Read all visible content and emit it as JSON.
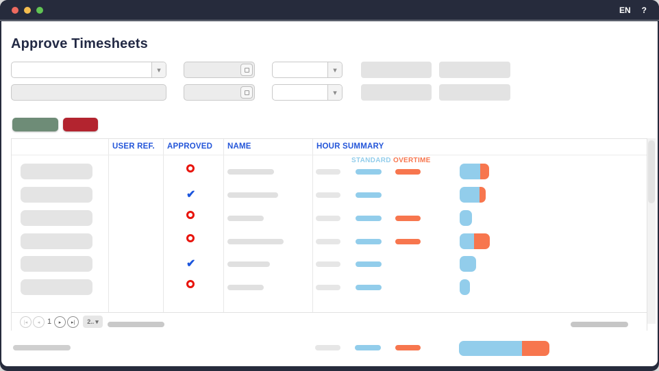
{
  "titlebar": {
    "language_label": "EN",
    "help_label": "?",
    "traffic_colors": {
      "close": "#ee6a5f",
      "minimize": "#f5bd4f",
      "zoom": "#61c454"
    }
  },
  "page": {
    "title": "Approve Timesheets"
  },
  "filters": {
    "row1": {
      "dropdown_value": "",
      "date_value": "",
      "dropdown2_value": ""
    },
    "row2": {
      "input_value": "",
      "date_value": "",
      "dropdown_value": ""
    }
  },
  "toolbar": {
    "approve_color": "#6e8c77",
    "reject_color": "#b3242f"
  },
  "colors": {
    "header_blue": "#2456d9",
    "not_approved_red": "#e8140c",
    "approved_blue": "#1b55dd",
    "standard_blue": "#92cdeb",
    "overtime_orange": "#f7764e",
    "placeholder_gray": "#e2e2e2"
  },
  "table": {
    "headers": {
      "col0": "",
      "col1": "USER REF.",
      "col2": "APPROVED",
      "col3": "NAME",
      "col4": "HOUR SUMMARY"
    },
    "legend": {
      "standard": "STANDARD",
      "overtime": "OVERTIME"
    },
    "rows": [
      {
        "approved": false,
        "name_w": 68,
        "std_pill": true,
        "ot_pill": true,
        "bar_std_w": 30,
        "bar_ot_w": 13
      },
      {
        "approved": true,
        "name_w": 74,
        "std_pill": true,
        "ot_pill": false,
        "bar_std_w": 29,
        "bar_ot_w": 9
      },
      {
        "approved": false,
        "name_w": 53,
        "std_pill": true,
        "ot_pill": true,
        "bar_std_w": 18,
        "bar_ot_w": 0
      },
      {
        "approved": false,
        "name_w": 82,
        "std_pill": true,
        "ot_pill": true,
        "bar_std_w": 21,
        "bar_ot_w": 23
      },
      {
        "approved": true,
        "name_w": 62,
        "std_pill": true,
        "ot_pill": false,
        "bar_std_w": 24,
        "bar_ot_w": 0
      },
      {
        "approved": false,
        "name_w": 53,
        "std_pill": true,
        "ot_pill": false,
        "bar_std_w": 15,
        "bar_ot_w": 0
      }
    ]
  },
  "pagination": {
    "first_icon": "|◂",
    "prev_icon": "◂",
    "page": "1",
    "next_icon": "▸",
    "last_icon": "▸|",
    "page_size": "2..",
    "chevron": "▾"
  },
  "footer_totals": {
    "bar_std_w": 92,
    "bar_ot_w": 40
  }
}
